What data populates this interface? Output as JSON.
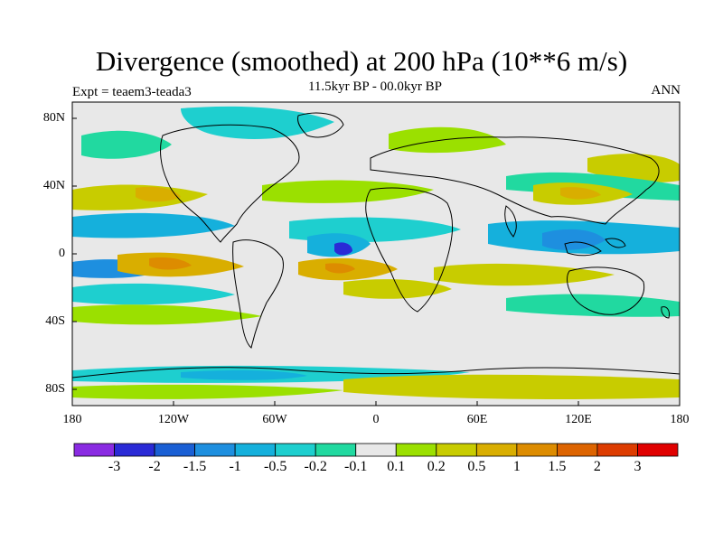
{
  "title": "Divergence (smoothed) at 200 hPa (10**6 m/s)",
  "subtitle": "11.5kyr BP - 00.0kyr BP",
  "expt_label": "Expt = teaem3-teada3",
  "season": "ANN",
  "lat_labels": [
    "80N",
    "40N",
    "0",
    "40S",
    "80S"
  ],
  "lon_labels": [
    "180",
    "120W",
    "60W",
    "0",
    "60E",
    "120E",
    "180"
  ],
  "legend": {
    "colors": [
      "#8a2be2",
      "#2a2ad6",
      "#1a5fd4",
      "#1e8fdf",
      "#15b0dc",
      "#1ecfcf",
      "#21d9a0",
      "#e8e8e8",
      "#9be000",
      "#c8cc00",
      "#d9ae00",
      "#dd8c00",
      "#dd6400",
      "#dd3c00",
      "#e00000"
    ],
    "labels": [
      "-3",
      "-2",
      "-1.5",
      "-1",
      "-0.5",
      "-0.2",
      "-0.1",
      "0.1",
      "0.2",
      "0.5",
      "1",
      "1.5",
      "2",
      "3"
    ]
  },
  "map_colors": {
    "neutral": "#e8e8e8",
    "pos_weak": "#9be000",
    "pos_mid": "#c8cc00",
    "pos_strong": "#d9ae00",
    "pos_max": "#dd8c00",
    "neg_weak": "#21d9a0",
    "neg_mid": "#1ecfcf",
    "neg_strong": "#15b0dc",
    "neg_max": "#1e8fdf",
    "neg_peak": "#2a2ad6"
  }
}
